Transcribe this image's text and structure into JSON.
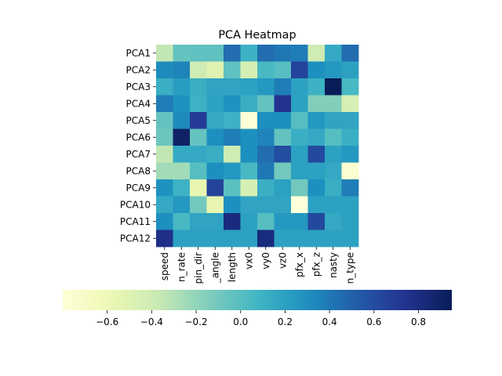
{
  "chart_data": {
    "type": "heatmap",
    "title": "PCA Heatmap",
    "rows": [
      "PCA1",
      "PCA2",
      "PCA3",
      "PCA4",
      "PCA5",
      "PCA6",
      "PCA7",
      "PCA8",
      "PCA9",
      "PCA10",
      "PCA11",
      "PCA12"
    ],
    "columns": [
      "start_speed",
      "break_rate",
      "spin_dir",
      "break_angle",
      "break_length",
      "vx0",
      "vy0",
      "vz0",
      "pfx_x",
      "pfx_z",
      "nasty",
      "pitch_type"
    ],
    "column_labels_visible": [
      "speed",
      "n_rate",
      "pin_dir",
      "_angle",
      "length",
      "vx0",
      "vy0",
      "vz0",
      "pfx_x",
      "pfx_z",
      "nasty",
      "n_type"
    ],
    "values": [
      [
        -0.35,
        -0.05,
        -0.03,
        -0.03,
        0.45,
        0.1,
        0.45,
        0.4,
        0.38,
        -0.4,
        0.15,
        0.45
      ],
      [
        0.32,
        0.35,
        -0.4,
        -0.5,
        -0.03,
        -0.45,
        0.05,
        0.0,
        0.65,
        0.3,
        0.25,
        0.2
      ],
      [
        0.12,
        0.22,
        0.12,
        0.18,
        0.18,
        0.2,
        0.25,
        0.38,
        0.2,
        0.1,
        0.95,
        0.05
      ],
      [
        0.38,
        0.28,
        0.1,
        0.2,
        0.28,
        0.12,
        -0.05,
        0.75,
        0.2,
        -0.15,
        -0.15,
        -0.45
      ],
      [
        -0.05,
        0.32,
        0.7,
        0.15,
        0.1,
        -0.8,
        0.3,
        0.3,
        0.0,
        0.25,
        0.18,
        0.18
      ],
      [
        -0.08,
        0.9,
        -0.05,
        0.3,
        0.38,
        0.3,
        0.35,
        -0.05,
        0.12,
        0.15,
        0.0,
        0.12
      ],
      [
        -0.35,
        0.15,
        0.15,
        0.12,
        -0.4,
        0.3,
        0.45,
        0.6,
        0.2,
        0.62,
        0.2,
        0.25
      ],
      [
        -0.25,
        -0.25,
        0.0,
        0.3,
        0.25,
        0.05,
        0.4,
        -0.1,
        0.2,
        0.2,
        0.15,
        -0.75
      ],
      [
        0.28,
        0.1,
        -0.55,
        0.65,
        -0.02,
        -0.45,
        0.12,
        0.2,
        -0.1,
        0.3,
        0.12,
        0.38
      ],
      [
        0.15,
        0.25,
        -0.1,
        -0.55,
        0.3,
        0.18,
        0.18,
        0.18,
        -0.8,
        0.2,
        0.2,
        0.2
      ],
      [
        0.3,
        0.05,
        0.18,
        0.18,
        0.82,
        0.2,
        0.0,
        0.25,
        0.25,
        0.62,
        0.15,
        0.2
      ],
      [
        0.78,
        0.2,
        0.2,
        0.2,
        0.2,
        0.2,
        0.82,
        0.2,
        0.2,
        0.2,
        0.2,
        0.2
      ]
    ],
    "colormap": "YlGnBu",
    "vmin": -0.8,
    "vmax": 0.95,
    "colorbar": {
      "orientation": "horizontal",
      "ticks": [
        -0.6,
        -0.4,
        -0.2,
        0.0,
        0.2,
        0.4,
        0.6,
        0.8
      ],
      "tick_labels": [
        "−0.6",
        "−0.4",
        "−0.2",
        "0.0",
        "0.2",
        "0.4",
        "0.6",
        "0.8"
      ]
    },
    "grid": false,
    "legend": "colorbar-bottom"
  }
}
